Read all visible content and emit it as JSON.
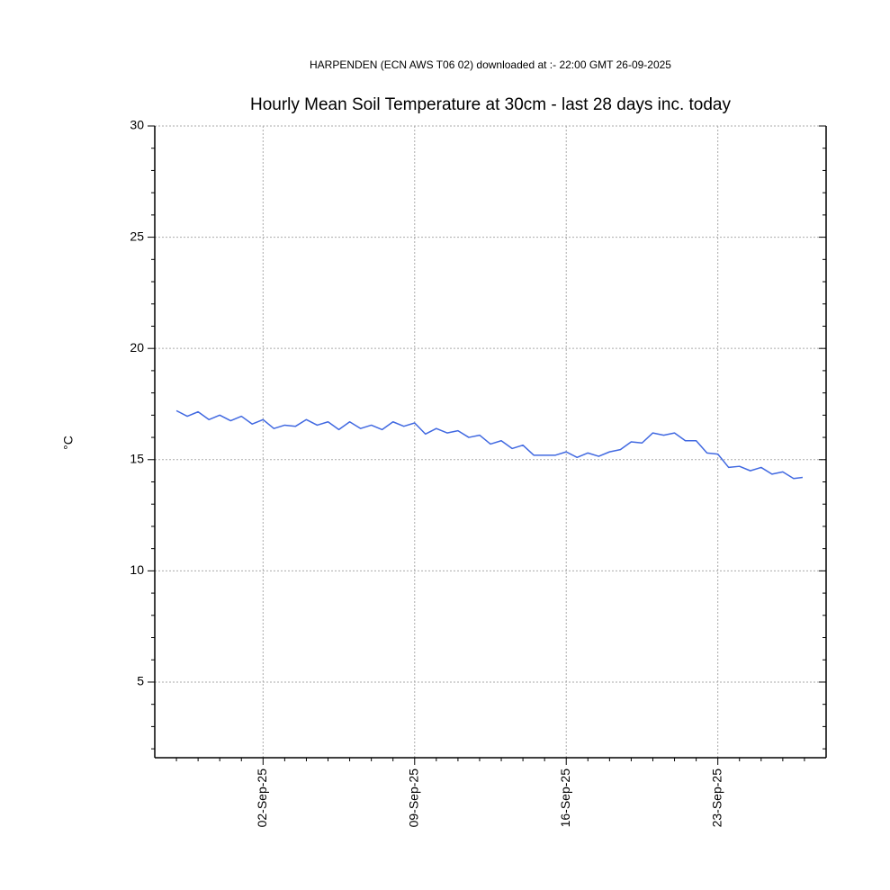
{
  "chart_data": {
    "type": "line",
    "subtitle": "HARPENDEN (ECN AWS T06 02) downloaded at :- 22:00 GMT 26-09-2025",
    "title": "Hourly Mean Soil Temperature at 30cm - last 28 days inc. today",
    "y_label": "°C",
    "x": [
      "2025-08-29T00:00",
      "2025-08-29T12:00",
      "2025-08-30T00:00",
      "2025-08-30T12:00",
      "2025-08-31T00:00",
      "2025-08-31T12:00",
      "2025-09-01T00:00",
      "2025-09-01T12:00",
      "2025-09-02T00:00",
      "2025-09-02T12:00",
      "2025-09-03T00:00",
      "2025-09-03T12:00",
      "2025-09-04T00:00",
      "2025-09-04T12:00",
      "2025-09-05T00:00",
      "2025-09-05T12:00",
      "2025-09-06T00:00",
      "2025-09-06T12:00",
      "2025-09-07T00:00",
      "2025-09-07T12:00",
      "2025-09-08T00:00",
      "2025-09-08T12:00",
      "2025-09-09T00:00",
      "2025-09-09T12:00",
      "2025-09-10T00:00",
      "2025-09-10T12:00",
      "2025-09-11T00:00",
      "2025-09-11T12:00",
      "2025-09-12T00:00",
      "2025-09-12T12:00",
      "2025-09-13T00:00",
      "2025-09-13T12:00",
      "2025-09-14T00:00",
      "2025-09-14T12:00",
      "2025-09-15T00:00",
      "2025-09-15T12:00",
      "2025-09-16T00:00",
      "2025-09-16T12:00",
      "2025-09-17T00:00",
      "2025-09-17T12:00",
      "2025-09-18T00:00",
      "2025-09-18T12:00",
      "2025-09-19T00:00",
      "2025-09-19T12:00",
      "2025-09-20T00:00",
      "2025-09-20T12:00",
      "2025-09-21T00:00",
      "2025-09-21T12:00",
      "2025-09-22T00:00",
      "2025-09-22T12:00",
      "2025-09-23T00:00",
      "2025-09-23T12:00",
      "2025-09-24T00:00",
      "2025-09-24T12:00",
      "2025-09-25T00:00",
      "2025-09-25T12:00",
      "2025-09-26T00:00",
      "2025-09-26T12:00",
      "2025-09-26T22:00"
    ],
    "series": [
      {
        "name": "Soil temperature 30cm",
        "color": "#4169e1",
        "values": [
          17.2,
          16.95,
          17.15,
          16.8,
          17.0,
          16.75,
          16.95,
          16.6,
          16.8,
          16.4,
          16.55,
          16.5,
          16.8,
          16.55,
          16.7,
          16.35,
          16.7,
          16.4,
          16.55,
          16.35,
          16.7,
          16.5,
          16.65,
          16.15,
          16.4,
          16.2,
          16.3,
          16.0,
          16.1,
          15.7,
          15.85,
          15.5,
          15.65,
          15.2,
          15.2,
          15.2,
          15.35,
          15.1,
          15.3,
          15.15,
          15.35,
          15.45,
          15.8,
          15.75,
          16.2,
          16.1,
          16.2,
          15.85,
          15.85,
          15.3,
          15.25,
          14.65,
          14.7,
          14.5,
          14.65,
          14.35,
          14.45,
          14.15,
          14.2
        ]
      }
    ],
    "xlim": [
      "2025-08-28T00:00",
      "2025-09-28T00:00"
    ],
    "xticks": [
      {
        "value": "2025-09-02T00:00",
        "label": "02-Sep-25"
      },
      {
        "value": "2025-09-09T00:00",
        "label": "09-Sep-25"
      },
      {
        "value": "2025-09-16T00:00",
        "label": "16-Sep-25"
      },
      {
        "value": "2025-09-23T00:00",
        "label": "23-Sep-25"
      }
    ],
    "xminorticks": [
      "2025-08-29T00:00",
      "2025-08-30T00:00",
      "2025-08-31T00:00",
      "2025-09-01T00:00",
      "2025-09-03T00:00",
      "2025-09-04T00:00",
      "2025-09-05T00:00",
      "2025-09-06T00:00",
      "2025-09-07T00:00",
      "2025-09-08T00:00",
      "2025-09-10T00:00",
      "2025-09-11T00:00",
      "2025-09-12T00:00",
      "2025-09-13T00:00",
      "2025-09-14T00:00",
      "2025-09-15T00:00",
      "2025-09-17T00:00",
      "2025-09-18T00:00",
      "2025-09-19T00:00",
      "2025-09-20T00:00",
      "2025-09-21T00:00",
      "2025-09-22T00:00",
      "2025-09-24T00:00",
      "2025-09-25T00:00",
      "2025-09-26T00:00",
      "2025-09-27T00:00"
    ],
    "ylim": [
      1.6,
      30
    ],
    "yticks": [
      5,
      10,
      15,
      20,
      25,
      30
    ],
    "yminorticks": [
      2,
      3,
      4,
      6,
      7,
      8,
      9,
      11,
      12,
      13,
      14,
      16,
      17,
      18,
      19,
      21,
      22,
      23,
      24,
      26,
      27,
      28,
      29
    ],
    "grid": true
  }
}
